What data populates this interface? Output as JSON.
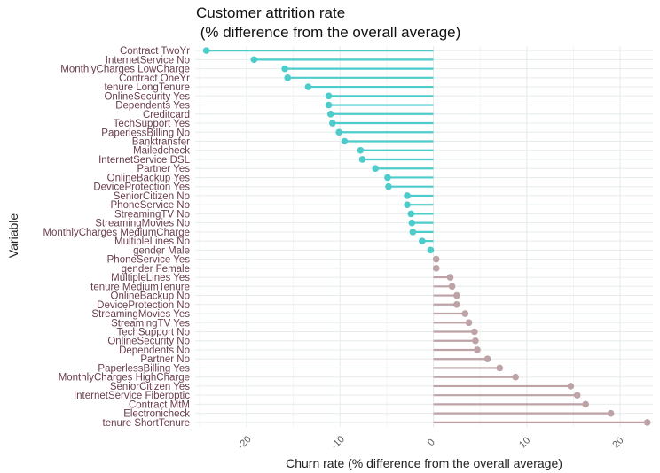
{
  "chart_data": {
    "type": "lollipop",
    "title_line1": "Customer attrition rate",
    "title_line2": " (% difference from the overall average)",
    "xlabel": "Churn rate (% difference from the overall average)",
    "ylabel": "Variable",
    "xlim": [
      -25.5,
      23.5
    ],
    "xticks": [
      -20,
      -10,
      0,
      10,
      20
    ],
    "xtick_labels": [
      "-20",
      "-10",
      "0",
      "10",
      "20"
    ],
    "grid": true,
    "colors": {
      "negative": "#4ecbcb",
      "positive": "#bda2a6"
    },
    "categories": [
      "Contract TwoYr",
      "InternetService No",
      "MonthlyCharges LowCharge",
      "Contract OneYr",
      "tenure LongTenure",
      "OnlineSecurity Yes",
      "Dependents Yes",
      "Creditcard",
      "TechSupport Yes",
      "PaperlessBilling No",
      "Banktransfer",
      "Mailedcheck",
      "InternetService DSL",
      "Partner Yes",
      "OnlineBackup Yes",
      "DeviceProtection Yes",
      "SeniorCitizen No",
      "PhoneService No",
      "StreamingTV No",
      "StreamingMovies No",
      "MonthlyCharges MediumCharge",
      "MultipleLines No",
      "gender Male",
      "PhoneService Yes",
      "gender Female",
      "MultipleLines Yes",
      "tenure MediumTenure",
      "OnlineBackup No",
      "DeviceProtection No",
      "StreamingMovies Yes",
      "StreamingTV Yes",
      "TechSupport No",
      "OnlineSecurity No",
      "Dependents No",
      "Partner No",
      "PaperlessBilling Yes",
      "MonthlyCharges HighCharge",
      "SeniorCitizen Yes",
      "InternetService Fiberoptic",
      "Contract MtM",
      "Electronicheck",
      "tenure ShortTenure"
    ],
    "values": [
      -24.3,
      -19.2,
      -15.9,
      -15.6,
      -13.4,
      -11.2,
      -11.2,
      -11.0,
      -10.8,
      -10.1,
      -9.5,
      -7.8,
      -7.6,
      -6.2,
      -4.9,
      -4.8,
      -2.8,
      -2.8,
      -2.4,
      -2.3,
      -2.2,
      -1.2,
      -0.3,
      0.3,
      0.3,
      1.8,
      2.0,
      2.5,
      2.5,
      3.4,
      3.8,
      4.4,
      4.5,
      4.7,
      5.8,
      7.1,
      8.8,
      14.7,
      15.4,
      16.3,
      19.0,
      22.9
    ]
  }
}
